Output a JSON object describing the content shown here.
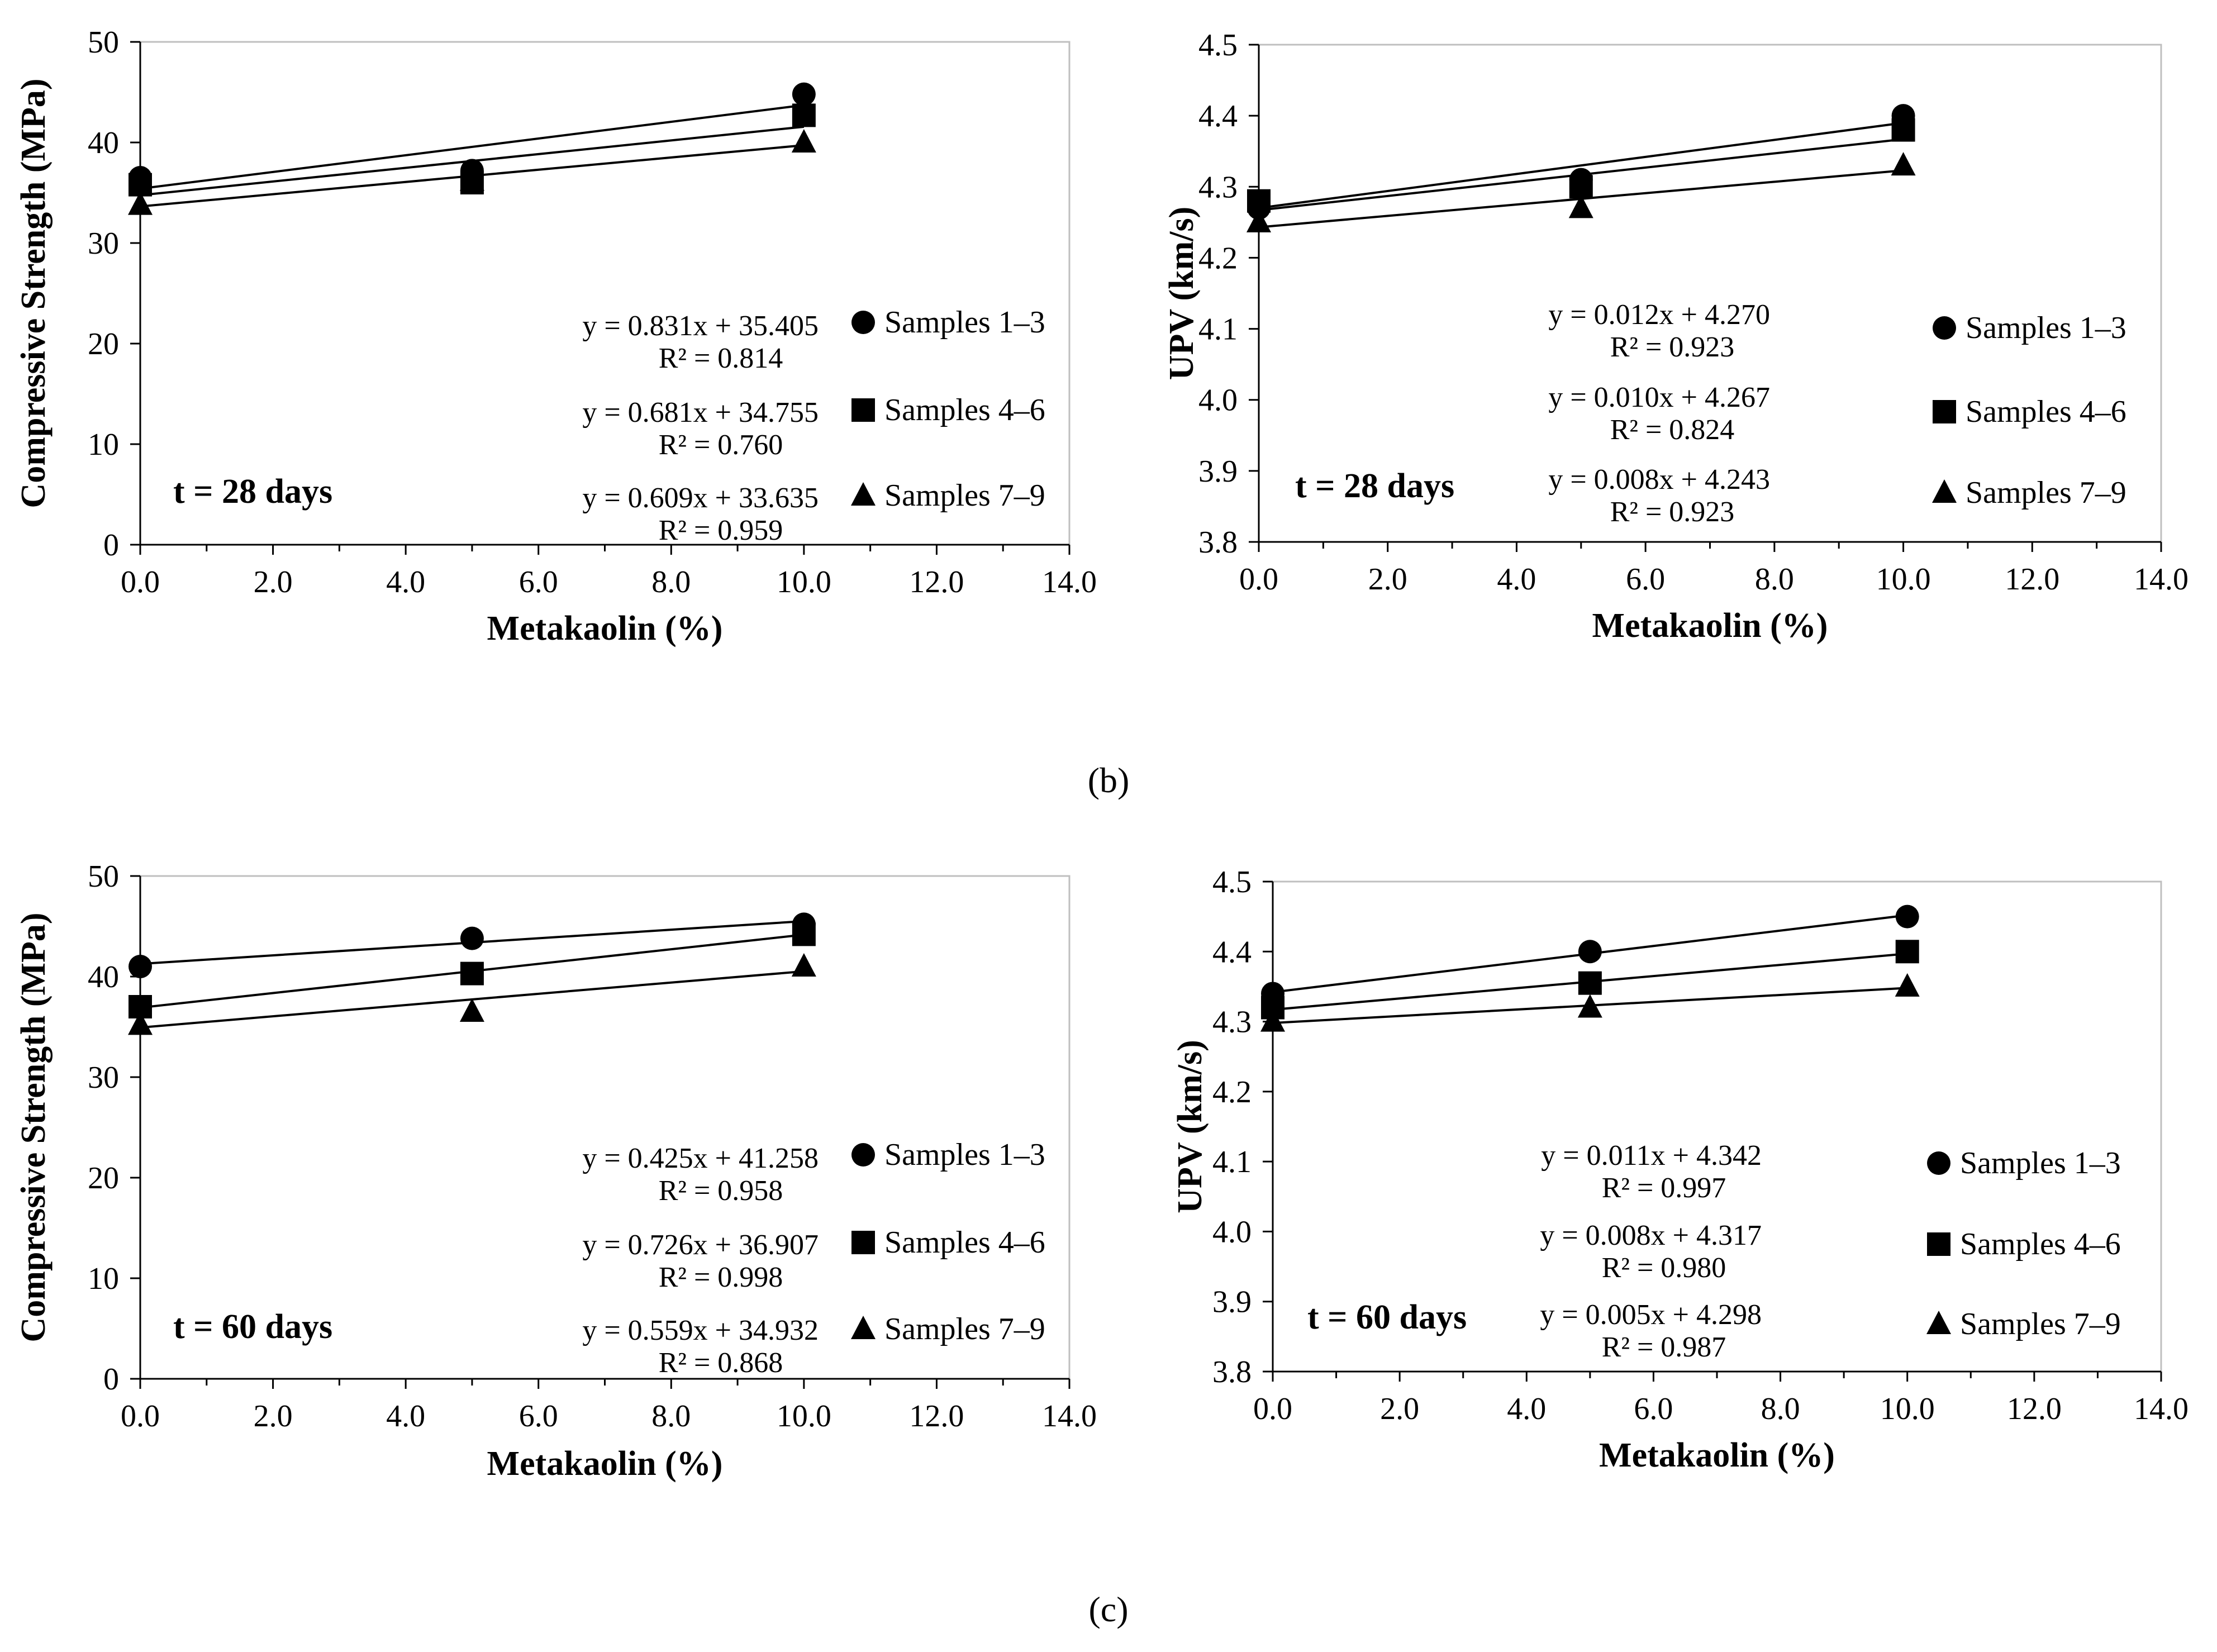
{
  "figure": {
    "panel_labels": [
      "(b)",
      "(c)"
    ]
  },
  "chart_data": [
    {
      "type": "scatter",
      "panel": "(b)",
      "title": "",
      "xlabel": "Metakaolin (%)",
      "ylabel": "Compressive Strength (MPa)",
      "xlim": [
        0,
        14
      ],
      "ylim": [
        0,
        50
      ],
      "xticks": [
        "0.0",
        "2.0",
        "4.0",
        "6.0",
        "8.0",
        "10.0",
        "12.0",
        "14.0"
      ],
      "yticks": [
        "0",
        "10",
        "20",
        "30",
        "40",
        "50"
      ],
      "annotation": "t = 28 days",
      "legend_position": "right",
      "series": [
        {
          "name": "Samples 1–3",
          "marker": "circle",
          "x": [
            0,
            5,
            10
          ],
          "y": [
            36.5,
            37.2,
            44.8
          ],
          "trendline": {
            "slope": 0.831,
            "intercept": 35.405
          },
          "equation": "y = 0.831x + 35.405",
          "r2": "R² = 0.814"
        },
        {
          "name": "Samples 4–6",
          "marker": "square",
          "x": [
            0,
            5,
            10
          ],
          "y": [
            35.8,
            36.0,
            42.7
          ],
          "trendline": {
            "slope": 0.681,
            "intercept": 34.755
          },
          "equation": "y = 0.681x + 34.755",
          "r2": "R² = 0.760"
        },
        {
          "name": "Samples 7–9",
          "marker": "triangle",
          "x": [
            0,
            5,
            10
          ],
          "y": [
            33.8,
            36.2,
            40.0
          ],
          "trendline": {
            "slope": 0.609,
            "intercept": 33.635
          },
          "equation": "y = 0.609x + 33.635",
          "r2": "R² = 0.959"
        }
      ]
    },
    {
      "type": "scatter",
      "panel": "(b)",
      "title": "",
      "xlabel": "Metakaolin (%)",
      "ylabel": "UPV (km/s)",
      "xlim": [
        0,
        14
      ],
      "ylim": [
        3.8,
        4.5
      ],
      "xticks": [
        "0.0",
        "2.0",
        "4.0",
        "6.0",
        "8.0",
        "10.0",
        "12.0",
        "14.0"
      ],
      "yticks": [
        "3.8",
        "3.9",
        "4.0",
        "4.1",
        "4.2",
        "4.3",
        "4.4",
        "4.5"
      ],
      "annotation": "t = 28 days",
      "legend_position": "right",
      "series": [
        {
          "name": "Samples 1–3",
          "marker": "circle",
          "x": [
            0,
            5,
            10
          ],
          "y": [
            4.27,
            4.31,
            4.4
          ],
          "trendline": {
            "slope": 0.012,
            "intercept": 4.27
          },
          "equation": "y = 0.012x + 4.270",
          "r2": "R² = 0.923"
        },
        {
          "name": "Samples 4–6",
          "marker": "square",
          "x": [
            0,
            5,
            10
          ],
          "y": [
            4.28,
            4.3,
            4.38
          ],
          "trendline": {
            "slope": 0.01,
            "intercept": 4.267
          },
          "equation": "y = 0.010x + 4.267",
          "r2": "R² = 0.824"
        },
        {
          "name": "Samples 7–9",
          "marker": "triangle",
          "x": [
            0,
            5,
            10
          ],
          "y": [
            4.25,
            4.27,
            4.33
          ],
          "trendline": {
            "slope": 0.008,
            "intercept": 4.243
          },
          "equation": "y = 0.008x + 4.243",
          "r2": "R² = 0.923"
        }
      ]
    },
    {
      "type": "scatter",
      "panel": "(c)",
      "title": "",
      "xlabel": "Metakaolin (%)",
      "ylabel": "Compressive Strength (MPa)",
      "xlim": [
        0,
        14
      ],
      "ylim": [
        0,
        50
      ],
      "xticks": [
        "0.0",
        "2.0",
        "4.0",
        "6.0",
        "8.0",
        "10.0",
        "12.0",
        "14.0"
      ],
      "yticks": [
        "0",
        "10",
        "20",
        "30",
        "40",
        "50"
      ],
      "annotation": "t = 60 days",
      "legend_position": "right",
      "series": [
        {
          "name": "Samples 1–3",
          "marker": "circle",
          "x": [
            0,
            5,
            10
          ],
          "y": [
            41.0,
            43.8,
            45.2
          ],
          "trendline": {
            "slope": 0.425,
            "intercept": 41.258
          },
          "equation": "y = 0.425x + 41.258",
          "r2": "R² = 0.958"
        },
        {
          "name": "Samples 4–6",
          "marker": "square",
          "x": [
            0,
            5,
            10
          ],
          "y": [
            37.0,
            40.3,
            44.2
          ],
          "trendline": {
            "slope": 0.726,
            "intercept": 36.907
          },
          "equation": "y = 0.726x + 36.907",
          "r2": "R² = 0.998"
        },
        {
          "name": "Samples 7–9",
          "marker": "triangle",
          "x": [
            0,
            5,
            10
          ],
          "y": [
            35.2,
            36.5,
            41.0
          ],
          "trendline": {
            "slope": 0.559,
            "intercept": 34.932
          },
          "equation": "y = 0.559x + 34.932",
          "r2": "R² = 0.868"
        }
      ]
    },
    {
      "type": "scatter",
      "panel": "(c)",
      "title": "",
      "xlabel": "Metakaolin (%)",
      "ylabel": "UPV (km/s)",
      "xlim": [
        0,
        14
      ],
      "ylim": [
        3.8,
        4.5
      ],
      "xticks": [
        "0.0",
        "2.0",
        "4.0",
        "6.0",
        "8.0",
        "10.0",
        "12.0",
        "14.0"
      ],
      "yticks": [
        "3.8",
        "3.9",
        "4.0",
        "4.1",
        "4.2",
        "4.3",
        "4.4",
        "4.5"
      ],
      "annotation": "t = 60 days",
      "legend_position": "right",
      "series": [
        {
          "name": "Samples 1–3",
          "marker": "circle",
          "x": [
            0,
            5,
            10
          ],
          "y": [
            4.34,
            4.4,
            4.45
          ],
          "trendline": {
            "slope": 0.011,
            "intercept": 4.342
          },
          "equation": "y = 0.011x + 4.342",
          "r2": "R² = 0.997"
        },
        {
          "name": "Samples 4–6",
          "marker": "square",
          "x": [
            0,
            5,
            10
          ],
          "y": [
            4.32,
            4.355,
            4.4
          ],
          "trendline": {
            "slope": 0.008,
            "intercept": 4.317
          },
          "equation": "y = 0.008x + 4.317",
          "r2": "R² = 0.980"
        },
        {
          "name": "Samples 7–9",
          "marker": "triangle",
          "x": [
            0,
            5,
            10
          ],
          "y": [
            4.3,
            4.32,
            4.35
          ],
          "trendline": {
            "slope": 0.005,
            "intercept": 4.298
          },
          "equation": "y = 0.005x + 4.298",
          "r2": "R² = 0.987"
        }
      ]
    }
  ]
}
